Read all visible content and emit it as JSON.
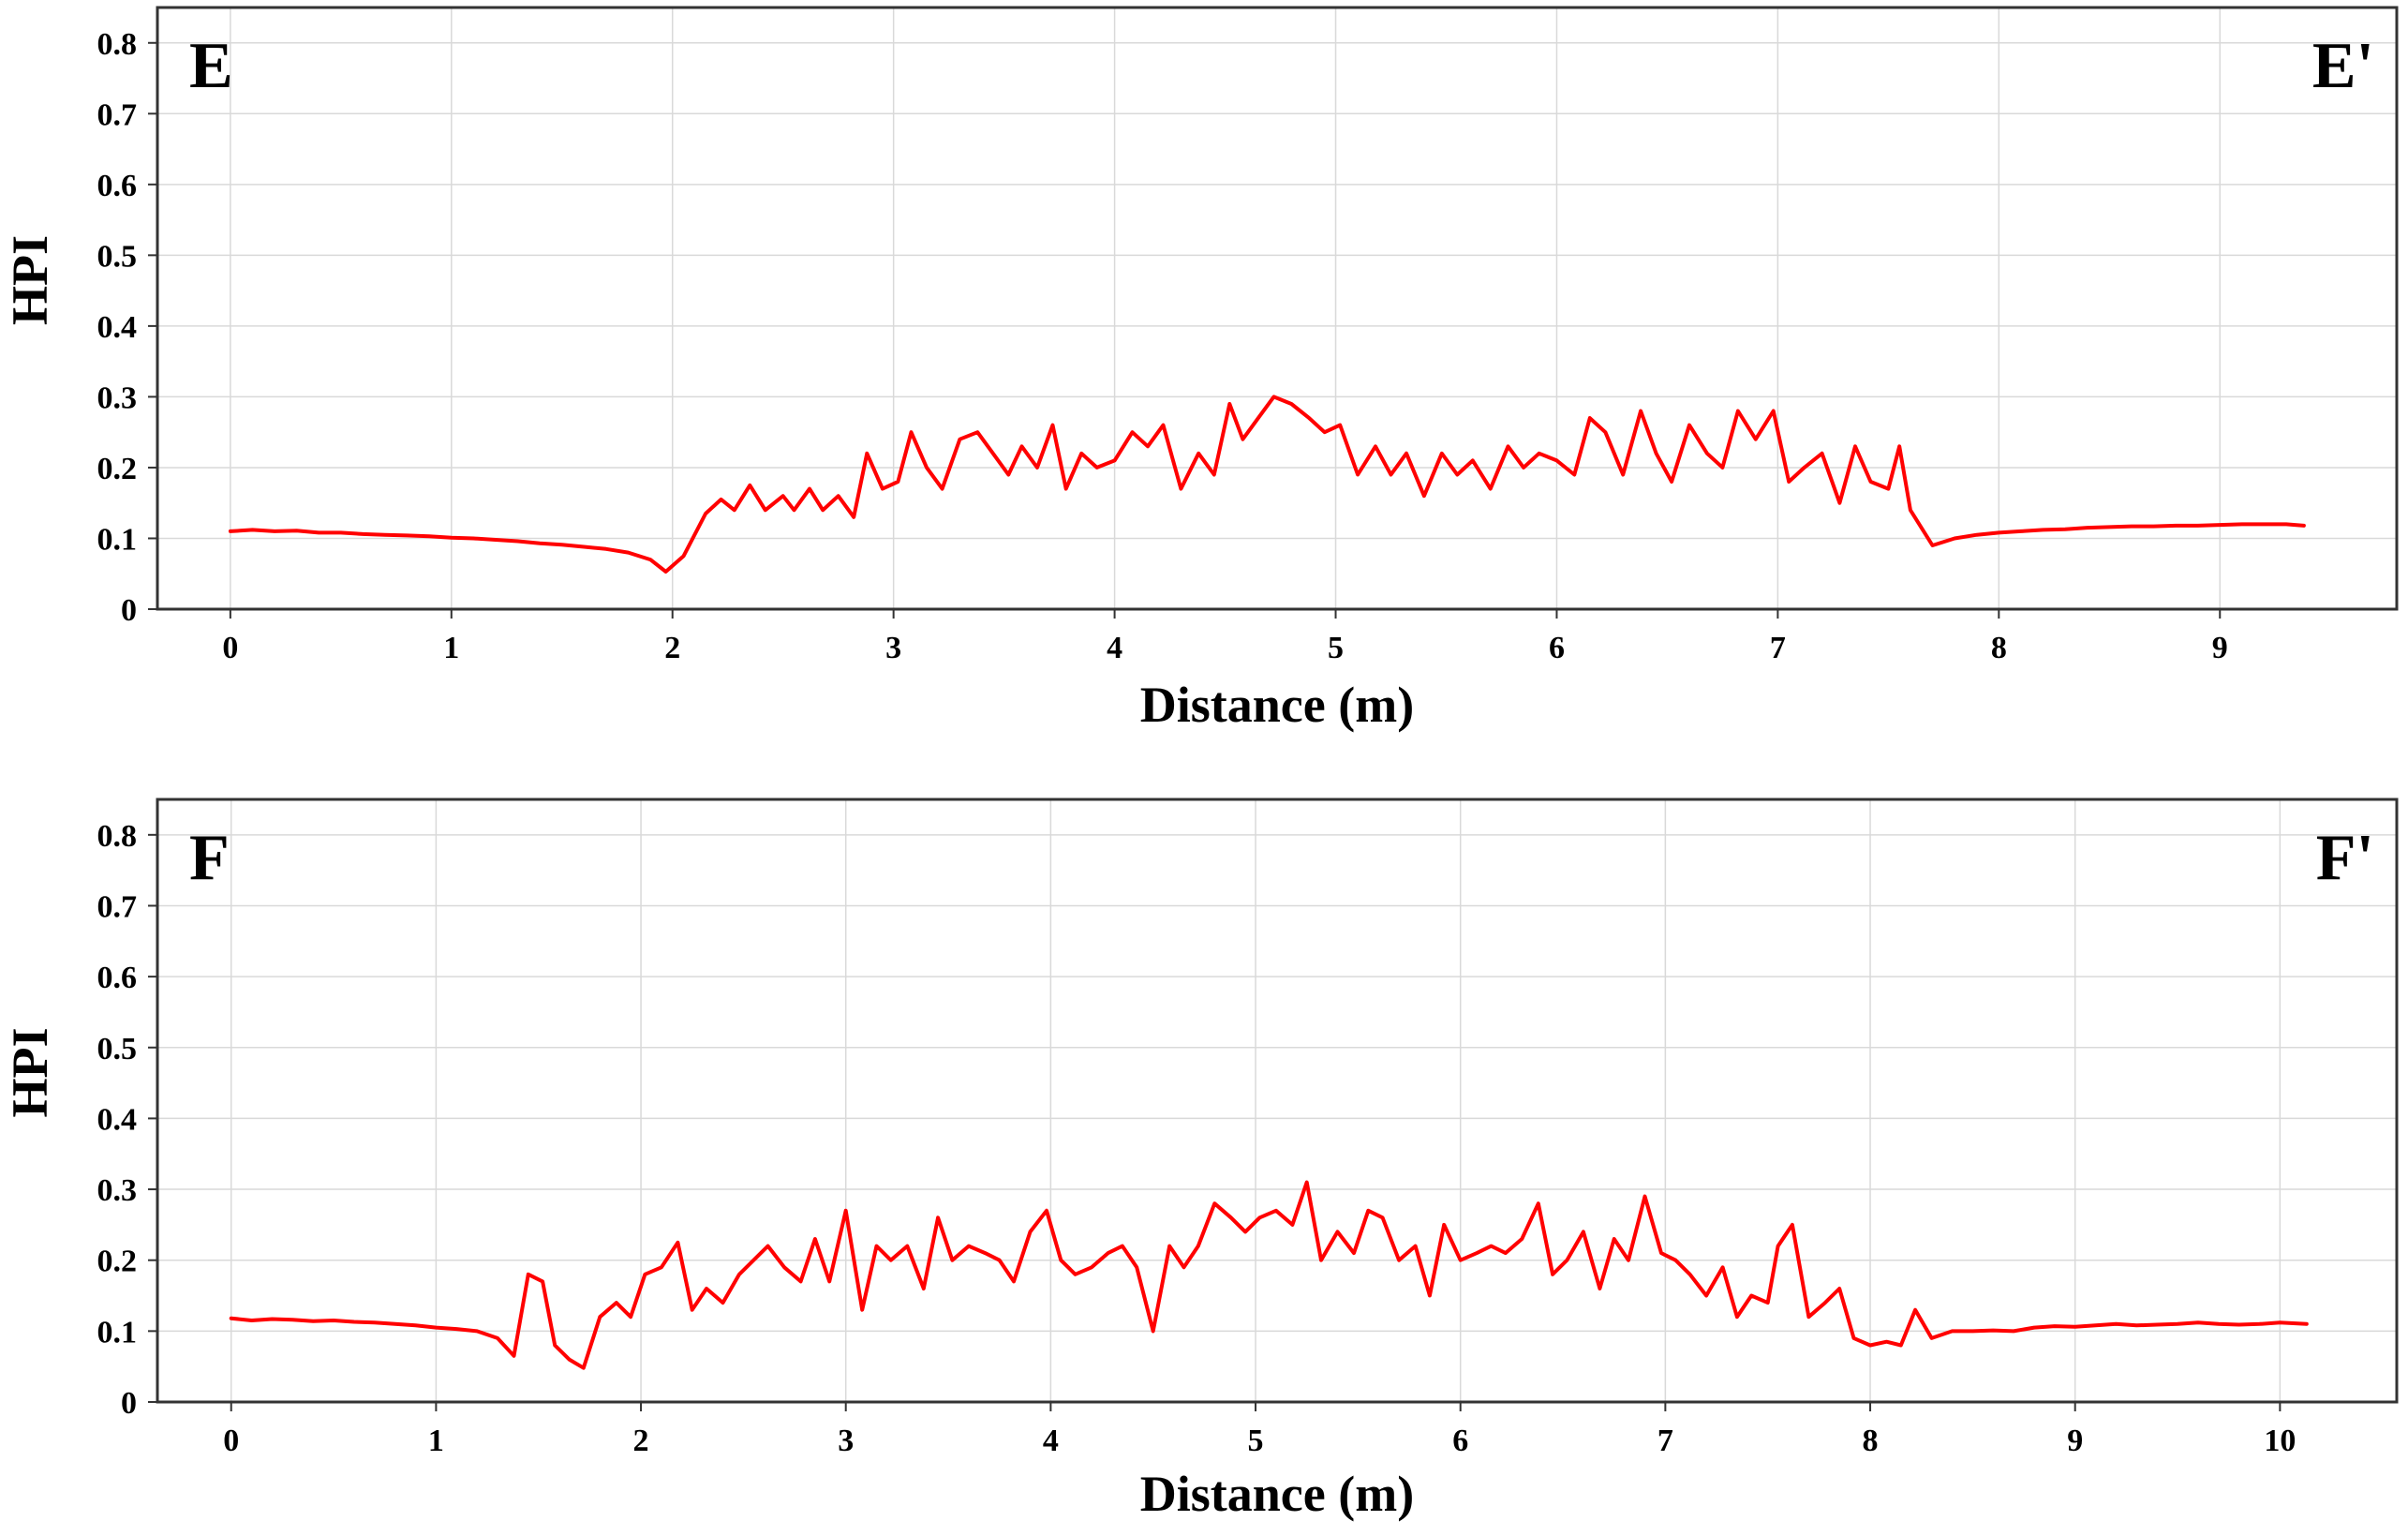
{
  "chart_data": [
    {
      "type": "line",
      "corner_left": "E",
      "corner_right": "E'",
      "xlabel": "Distance (m)",
      "ylabel": "HPI",
      "xlim": [
        -0.33,
        9.8
      ],
      "ylim": [
        0,
        0.85
      ],
      "xticks": [
        0,
        1,
        2,
        3,
        4,
        5,
        6,
        7,
        8,
        9
      ],
      "yticks": [
        0,
        0.1,
        0.2,
        0.3,
        0.4,
        0.5,
        0.6,
        0.7,
        0.8
      ],
      "grid": true,
      "color": "#ff0000",
      "series": [
        {
          "x": [
            0,
            0.1,
            0.2,
            0.3,
            0.4,
            0.5,
            0.6,
            0.7,
            0.8,
            0.9,
            1.0,
            1.1,
            1.2,
            1.3,
            1.4,
            1.5,
            1.6,
            1.7,
            1.8,
            1.9,
            1.97,
            2.05,
            2.15,
            2.22,
            2.28,
            2.35,
            2.42,
            2.5,
            2.55,
            2.62,
            2.68,
            2.75,
            2.82,
            2.88,
            2.95,
            3.02,
            3.08,
            3.15,
            3.22,
            3.3,
            3.38,
            3.45,
            3.52,
            3.58,
            3.65,
            3.72,
            3.78,
            3.85,
            3.92,
            4.0,
            4.08,
            4.15,
            4.22,
            4.3,
            4.38,
            4.45,
            4.52,
            4.58,
            4.65,
            4.72,
            4.8,
            4.88,
            4.95,
            5.02,
            5.1,
            5.18,
            5.25,
            5.32,
            5.4,
            5.48,
            5.55,
            5.62,
            5.7,
            5.78,
            5.85,
            5.92,
            6.0,
            6.08,
            6.15,
            6.22,
            6.3,
            6.38,
            6.45,
            6.52,
            6.6,
            6.68,
            6.75,
            6.82,
            6.9,
            6.98,
            7.05,
            7.12,
            7.2,
            7.28,
            7.35,
            7.42,
            7.5,
            7.55,
            7.6,
            7.7,
            7.8,
            7.9,
            8.0,
            8.1,
            8.2,
            8.3,
            8.4,
            8.5,
            8.6,
            8.7,
            8.8,
            8.9,
            9.0,
            9.1,
            9.2,
            9.3,
            9.38
          ],
          "y": [
            0.11,
            0.112,
            0.11,
            0.111,
            0.108,
            0.108,
            0.106,
            0.105,
            0.104,
            0.103,
            0.101,
            0.1,
            0.098,
            0.096,
            0.093,
            0.091,
            0.088,
            0.085,
            0.08,
            0.07,
            0.053,
            0.075,
            0.135,
            0.155,
            0.14,
            0.175,
            0.14,
            0.16,
            0.14,
            0.17,
            0.14,
            0.16,
            0.13,
            0.22,
            0.17,
            0.18,
            0.25,
            0.2,
            0.17,
            0.24,
            0.25,
            0.22,
            0.19,
            0.23,
            0.2,
            0.26,
            0.17,
            0.22,
            0.2,
            0.21,
            0.25,
            0.23,
            0.26,
            0.17,
            0.22,
            0.19,
            0.29,
            0.24,
            0.27,
            0.3,
            0.29,
            0.27,
            0.25,
            0.26,
            0.19,
            0.23,
            0.19,
            0.22,
            0.16,
            0.22,
            0.19,
            0.21,
            0.17,
            0.23,
            0.2,
            0.22,
            0.21,
            0.19,
            0.27,
            0.25,
            0.19,
            0.28,
            0.22,
            0.18,
            0.26,
            0.22,
            0.2,
            0.28,
            0.24,
            0.28,
            0.18,
            0.2,
            0.22,
            0.15,
            0.23,
            0.18,
            0.17,
            0.23,
            0.14,
            0.09,
            0.1,
            0.105,
            0.108,
            0.11,
            0.112,
            0.113,
            0.115,
            0.116,
            0.117,
            0.117,
            0.118,
            0.118,
            0.119,
            0.12,
            0.12,
            0.12,
            0.118
          ]
        }
      ]
    },
    {
      "type": "line",
      "corner_left": "F",
      "corner_right": "F'",
      "xlabel": "Distance (m)",
      "ylabel": "HPI",
      "xlim": [
        -0.36,
        10.57
      ],
      "ylim": [
        0,
        0.85
      ],
      "xticks": [
        0,
        1,
        2,
        3,
        4,
        5,
        6,
        7,
        8,
        9,
        10
      ],
      "yticks": [
        0,
        0.1,
        0.2,
        0.3,
        0.4,
        0.5,
        0.6,
        0.7,
        0.8
      ],
      "grid": true,
      "color": "#ff0000",
      "series": [
        {
          "x": [
            0,
            0.1,
            0.2,
            0.3,
            0.4,
            0.5,
            0.6,
            0.7,
            0.8,
            0.9,
            1.0,
            1.1,
            1.2,
            1.3,
            1.38,
            1.45,
            1.52,
            1.58,
            1.65,
            1.72,
            1.8,
            1.88,
            1.95,
            2.02,
            2.1,
            2.18,
            2.25,
            2.32,
            2.4,
            2.48,
            2.55,
            2.62,
            2.7,
            2.78,
            2.85,
            2.92,
            3.0,
            3.08,
            3.15,
            3.22,
            3.3,
            3.38,
            3.45,
            3.52,
            3.6,
            3.68,
            3.75,
            3.82,
            3.9,
            3.98,
            4.05,
            4.12,
            4.2,
            4.28,
            4.35,
            4.42,
            4.5,
            4.58,
            4.65,
            4.72,
            4.8,
            4.88,
            4.95,
            5.02,
            5.1,
            5.18,
            5.25,
            5.32,
            5.4,
            5.48,
            5.55,
            5.62,
            5.7,
            5.78,
            5.85,
            5.92,
            6.0,
            6.08,
            6.15,
            6.22,
            6.3,
            6.38,
            6.45,
            6.52,
            6.6,
            6.68,
            6.75,
            6.82,
            6.9,
            6.98,
            7.05,
            7.12,
            7.2,
            7.28,
            7.35,
            7.42,
            7.5,
            7.55,
            7.62,
            7.7,
            7.78,
            7.85,
            7.92,
            8.0,
            8.08,
            8.15,
            8.22,
            8.3,
            8.4,
            8.5,
            8.6,
            8.7,
            8.8,
            8.9,
            9.0,
            9.1,
            9.2,
            9.3,
            9.4,
            9.5,
            9.6,
            9.7,
            9.8,
            9.9,
            10.0,
            10.13
          ],
          "y": [
            0.118,
            0.115,
            0.117,
            0.116,
            0.114,
            0.115,
            0.113,
            0.112,
            0.11,
            0.108,
            0.105,
            0.103,
            0.1,
            0.09,
            0.065,
            0.18,
            0.17,
            0.08,
            0.06,
            0.048,
            0.12,
            0.14,
            0.12,
            0.18,
            0.19,
            0.225,
            0.13,
            0.16,
            0.14,
            0.18,
            0.2,
            0.22,
            0.19,
            0.17,
            0.23,
            0.17,
            0.27,
            0.13,
            0.22,
            0.2,
            0.22,
            0.16,
            0.26,
            0.2,
            0.22,
            0.21,
            0.2,
            0.17,
            0.24,
            0.27,
            0.2,
            0.18,
            0.19,
            0.21,
            0.22,
            0.19,
            0.1,
            0.22,
            0.19,
            0.22,
            0.28,
            0.26,
            0.24,
            0.26,
            0.27,
            0.25,
            0.31,
            0.2,
            0.24,
            0.21,
            0.27,
            0.26,
            0.2,
            0.22,
            0.15,
            0.25,
            0.2,
            0.21,
            0.22,
            0.21,
            0.23,
            0.28,
            0.18,
            0.2,
            0.24,
            0.16,
            0.23,
            0.2,
            0.29,
            0.21,
            0.2,
            0.18,
            0.15,
            0.19,
            0.12,
            0.15,
            0.14,
            0.22,
            0.25,
            0.12,
            0.14,
            0.16,
            0.09,
            0.08,
            0.085,
            0.08,
            0.13,
            0.09,
            0.1,
            0.1,
            0.101,
            0.1,
            0.105,
            0.107,
            0.106,
            0.108,
            0.11,
            0.108,
            0.109,
            0.11,
            0.112,
            0.11,
            0.109,
            0.11,
            0.112,
            0.11
          ]
        }
      ]
    }
  ]
}
